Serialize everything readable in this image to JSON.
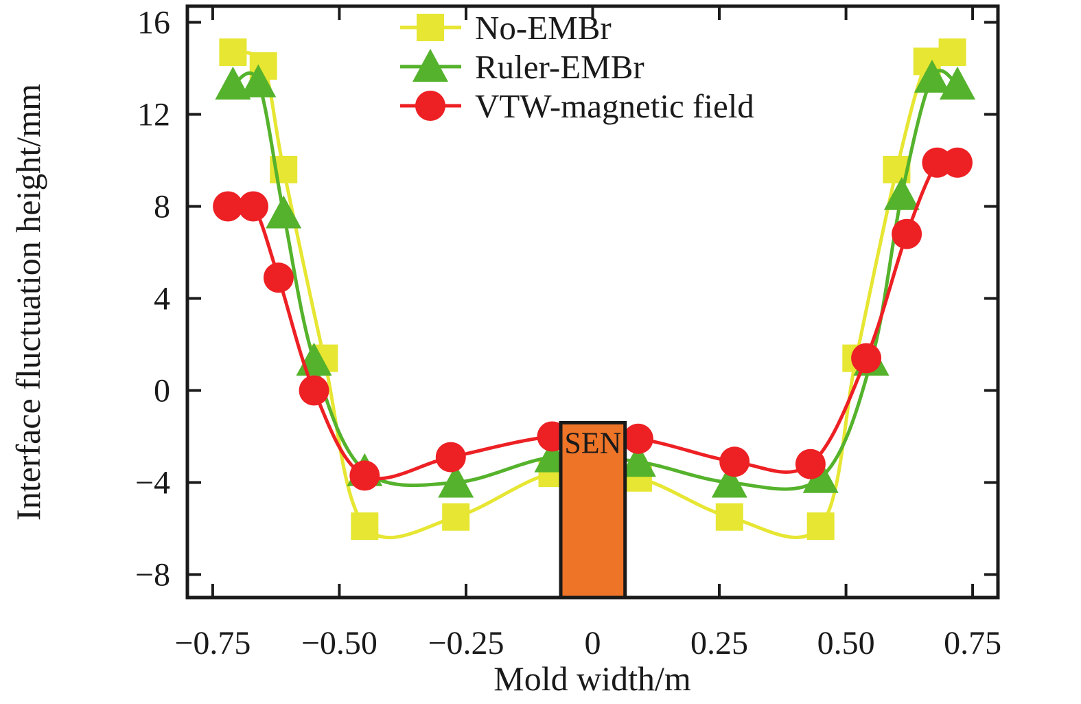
{
  "figure": {
    "background": "#ffffff",
    "axis_color": "#1a1a1a"
  },
  "chart_data": {
    "type": "line",
    "title": "",
    "xlabel": "Mold width/m",
    "ylabel": "Interface fluctuation height/mm",
    "xlim": [
      -0.8,
      0.8
    ],
    "ylim": [
      -9,
      16.7
    ],
    "grid": false,
    "legend_position": "top-center-inside",
    "x_ticks": [
      {
        "value": -0.75,
        "label": "−0.75"
      },
      {
        "value": -0.5,
        "label": "−0.50"
      },
      {
        "value": -0.25,
        "label": "−0.25"
      },
      {
        "value": 0,
        "label": "0"
      },
      {
        "value": 0.25,
        "label": "0.25"
      },
      {
        "value": 0.5,
        "label": "0.50"
      },
      {
        "value": 0.75,
        "label": "0.75"
      }
    ],
    "y_ticks": [
      {
        "value": -8,
        "label": "−8"
      },
      {
        "value": -4,
        "label": "−4"
      },
      {
        "value": 0,
        "label": "0"
      },
      {
        "value": 4,
        "label": "4"
      },
      {
        "value": 8,
        "label": "8"
      },
      {
        "value": 12,
        "label": "12"
      },
      {
        "value": 16,
        "label": "16"
      }
    ],
    "series": [
      {
        "name": "No-EMBr",
        "marker": "square",
        "color": "#e6e633",
        "points": [
          [
            -0.71,
            14.7
          ],
          [
            -0.65,
            14.1
          ],
          [
            -0.61,
            9.6
          ],
          [
            -0.53,
            1.4
          ],
          [
            -0.45,
            -5.9
          ],
          [
            -0.27,
            -5.5
          ],
          [
            -0.08,
            -3.6
          ],
          [
            0.09,
            -3.8
          ],
          [
            0.27,
            -5.5
          ],
          [
            0.45,
            -5.9
          ],
          [
            0.52,
            1.4
          ],
          [
            0.6,
            9.6
          ],
          [
            0.66,
            14.3
          ],
          [
            0.71,
            14.7
          ]
        ]
      },
      {
        "name": "Ruler-EMBr",
        "marker": "triangle",
        "color": "#55b22c",
        "points": [
          [
            -0.71,
            13.3
          ],
          [
            -0.66,
            13.4
          ],
          [
            -0.61,
            7.7
          ],
          [
            -0.55,
            1.3
          ],
          [
            -0.45,
            -3.5
          ],
          [
            -0.27,
            -4.0
          ],
          [
            -0.08,
            -2.9
          ],
          [
            0.09,
            -3.1
          ],
          [
            0.27,
            -4.0
          ],
          [
            0.45,
            -3.8
          ],
          [
            0.55,
            1.3
          ],
          [
            0.61,
            8.5
          ],
          [
            0.67,
            13.6
          ],
          [
            0.72,
            13.3
          ]
        ]
      },
      {
        "name": "VTW-magnetic field",
        "marker": "circle",
        "color": "#ed2024",
        "points": [
          [
            -0.72,
            8.0
          ],
          [
            -0.67,
            8.0
          ],
          [
            -0.62,
            4.9
          ],
          [
            -0.55,
            0.0
          ],
          [
            -0.45,
            -3.7
          ],
          [
            -0.28,
            -2.9
          ],
          [
            -0.08,
            -2.0
          ],
          [
            0.09,
            -2.1
          ],
          [
            0.28,
            -3.1
          ],
          [
            0.43,
            -3.2
          ],
          [
            0.54,
            1.4
          ],
          [
            0.62,
            6.8
          ],
          [
            0.68,
            9.9
          ],
          [
            0.72,
            9.9
          ]
        ]
      }
    ],
    "annotation": {
      "label": "SEN",
      "fill": "#ee7428",
      "border": "#1a1a1a",
      "x_min": -0.063,
      "x_max": 0.064,
      "y_top": -1.4
    }
  }
}
